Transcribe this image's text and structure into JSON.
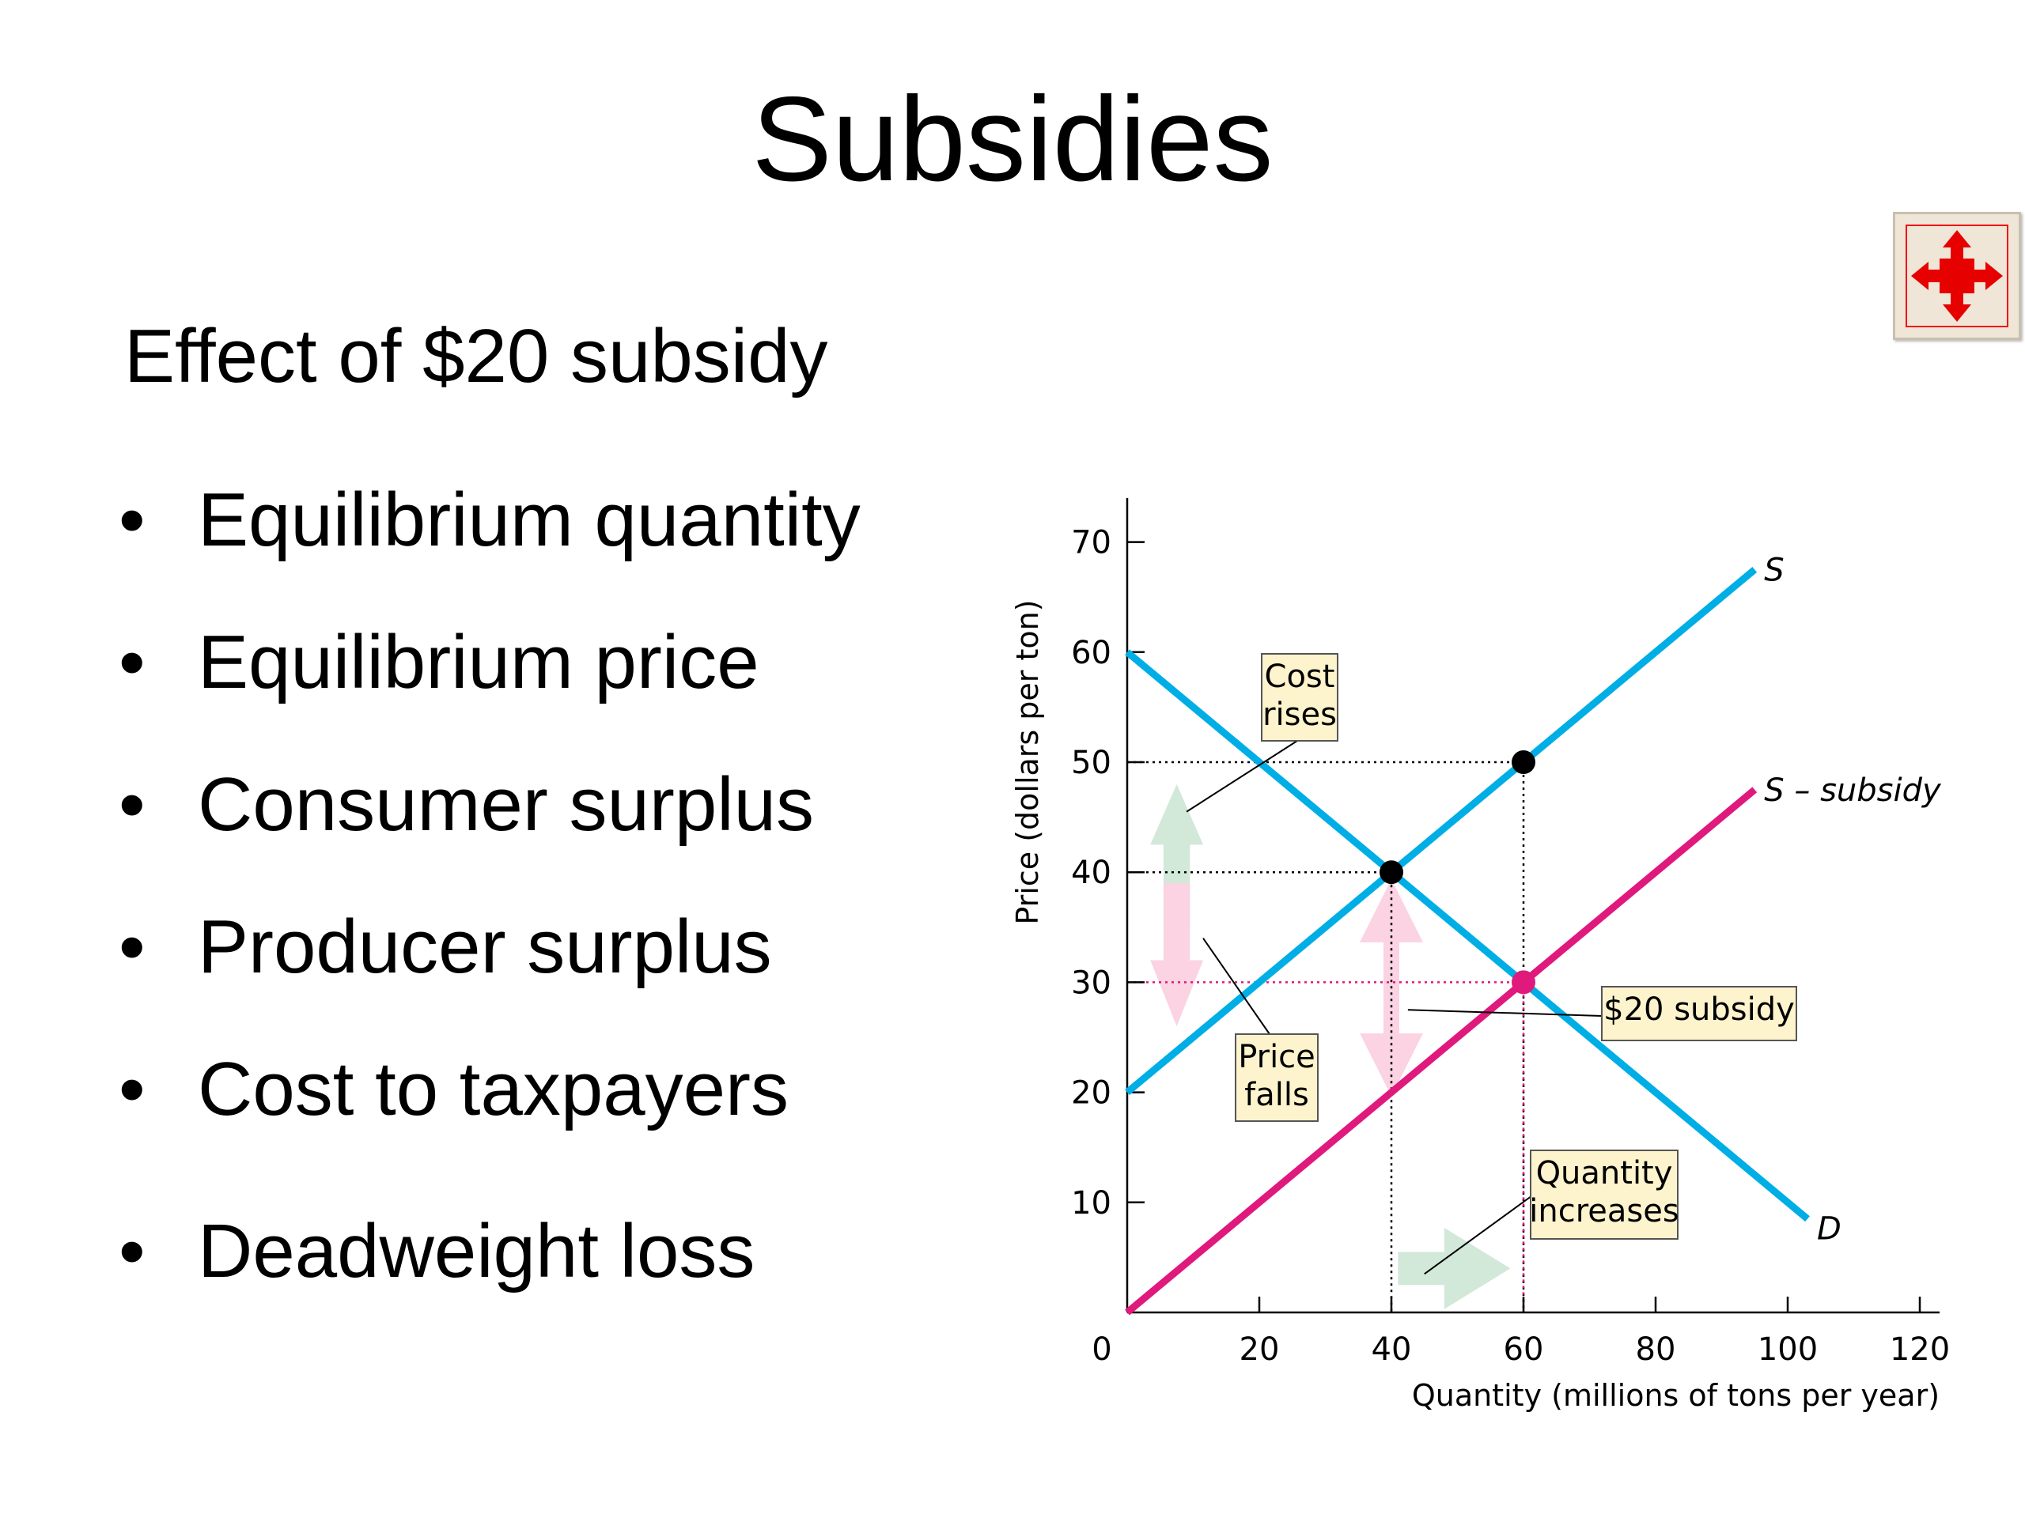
{
  "slide": {
    "title": "Subsidies",
    "subtitle": "Effect of $20 subsidy",
    "bullet_symbol": "•",
    "bullets": [
      "Equilibrium quantity",
      "Equilibrium price",
      "Consumer surplus",
      "Producer surplus",
      "Cost to taxpayers",
      "Deadweight loss"
    ],
    "nav_icon": "expand-arrows-icon"
  },
  "chart_data": {
    "type": "line",
    "xlabel": "Quantity (millions of tons per year)",
    "ylabel": "Price (dollars per ton)",
    "xlim": [
      0,
      120
    ],
    "ylim": [
      0,
      75
    ],
    "x_ticks": [
      0,
      20,
      40,
      60,
      80,
      100,
      120
    ],
    "y_ticks": [
      10,
      20,
      30,
      40,
      50,
      60,
      70
    ],
    "highlighted_ticks": {
      "x": [
        60
      ],
      "y": [
        30
      ],
      "color": "#e0197d"
    },
    "grid": false,
    "series": [
      {
        "name": "S",
        "color": "#00aee6",
        "x": [
          0,
          95
        ],
        "y": [
          20,
          67.5
        ]
      },
      {
        "name": "S – subsidy",
        "color": "#e0197d",
        "x": [
          0,
          95
        ],
        "y": [
          0,
          47.5
        ]
      },
      {
        "name": "D",
        "color": "#00aee6",
        "x": [
          0,
          103
        ],
        "y": [
          60,
          8.5
        ]
      }
    ],
    "points": [
      {
        "x": 40,
        "y": 40,
        "color": "#000000"
      },
      {
        "x": 60,
        "y": 50,
        "color": "#000000"
      },
      {
        "x": 60,
        "y": 30,
        "color": "#e0197d"
      }
    ],
    "guides": [
      {
        "x": 60,
        "y": 50,
        "color": "#000000"
      },
      {
        "x": 40,
        "y": 40,
        "color": "#000000"
      },
      {
        "x": 60,
        "y": 30,
        "color": "#e0197d"
      }
    ],
    "annotations": {
      "cost_rises": [
        "Cost",
        "rises"
      ],
      "price_falls": [
        "Price",
        "falls"
      ],
      "subsidy": [
        "$20 subsidy"
      ],
      "quantity_increases": [
        "Quantity",
        "increases"
      ]
    },
    "arrow_colors": {
      "green": "#d2e8d9",
      "pink": "#fbd3e2"
    }
  }
}
